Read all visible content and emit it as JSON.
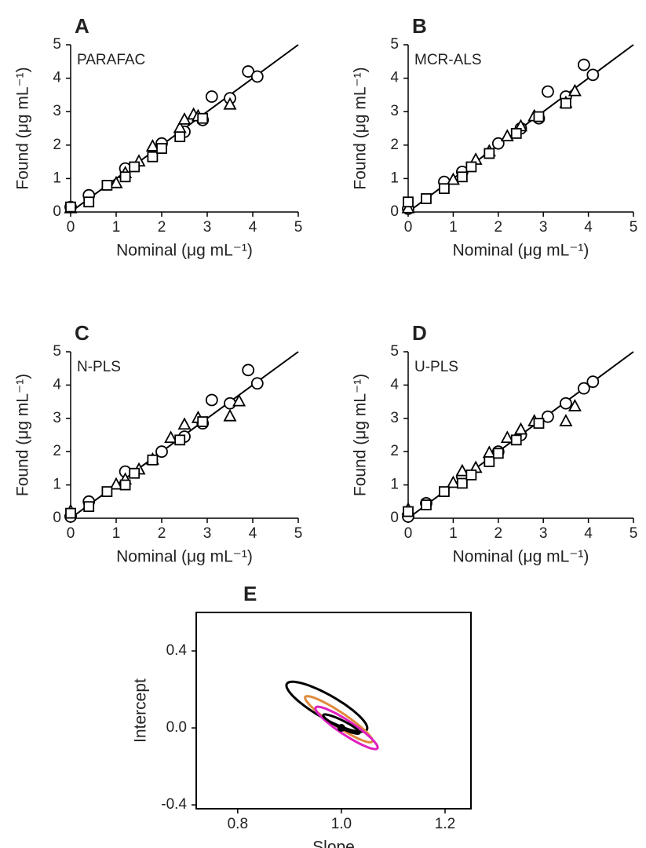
{
  "chart_data": [
    {
      "type": "scatter",
      "panel_label": "A",
      "method": "PARAFAC",
      "x_label": "Nominal (μg mL⁻¹)",
      "y_label": "Found (μg mL⁻¹)",
      "xlim": [
        0,
        5
      ],
      "ylim": [
        0,
        5
      ],
      "xticks": [
        0,
        1,
        2,
        3,
        4,
        5
      ],
      "yticks": [
        0,
        1,
        2,
        3,
        4,
        5
      ],
      "series": [
        {
          "marker": "circle",
          "color": "#000000",
          "x": [
            0,
            0.4,
            1.2,
            2.0,
            2.5,
            2.9,
            3.1,
            3.5,
            3.9,
            4.1
          ],
          "values": [
            0.15,
            0.5,
            1.3,
            2.05,
            2.4,
            2.75,
            3.45,
            3.4,
            4.2,
            4.05
          ]
        },
        {
          "marker": "triangle",
          "color": "#000000",
          "x": [
            0,
            1.0,
            1.2,
            1.5,
            1.8,
            2.4,
            2.5,
            2.7,
            2.8,
            3.5
          ],
          "values": [
            0.1,
            0.85,
            1.15,
            1.5,
            1.95,
            2.5,
            2.75,
            2.9,
            2.85,
            3.2
          ]
        },
        {
          "marker": "square",
          "color": "#000000",
          "x": [
            0,
            0.4,
            0.8,
            1.2,
            1.4,
            1.8,
            2.0,
            2.4,
            2.9
          ],
          "values": [
            0.15,
            0.3,
            0.8,
            1.05,
            1.35,
            1.65,
            1.9,
            2.25,
            2.8
          ]
        }
      ]
    },
    {
      "type": "scatter",
      "panel_label": "B",
      "method": "MCR-ALS",
      "x_label": "Nominal (μg mL⁻¹)",
      "y_label": "Found (μg mL⁻¹)",
      "xlim": [
        0,
        5
      ],
      "ylim": [
        0,
        5
      ],
      "xticks": [
        0,
        1,
        2,
        3,
        4,
        5
      ],
      "yticks": [
        0,
        1,
        2,
        3,
        4,
        5
      ],
      "series": [
        {
          "marker": "circle",
          "color": "#000000",
          "x": [
            0,
            0.8,
            1.2,
            2.0,
            2.5,
            2.9,
            3.1,
            3.5,
            3.9,
            4.1
          ],
          "values": [
            0.1,
            0.9,
            1.2,
            2.05,
            2.5,
            2.8,
            3.6,
            3.45,
            4.4,
            4.1
          ]
        },
        {
          "marker": "triangle",
          "color": "#000000",
          "x": [
            0,
            1.0,
            1.5,
            1.8,
            2.2,
            2.5,
            2.8,
            3.5,
            3.7
          ],
          "values": [
            0.1,
            0.95,
            1.55,
            1.8,
            2.25,
            2.55,
            2.85,
            3.25,
            3.6
          ]
        },
        {
          "marker": "square",
          "color": "#000000",
          "x": [
            0,
            0.4,
            0.8,
            1.2,
            1.4,
            1.8,
            2.4,
            2.9,
            3.5
          ],
          "values": [
            0.3,
            0.4,
            0.7,
            1.05,
            1.35,
            1.75,
            2.35,
            2.85,
            3.25
          ]
        }
      ]
    },
    {
      "type": "scatter",
      "panel_label": "C",
      "method": "N-PLS",
      "x_label": "Nominal (μg mL⁻¹)",
      "y_label": "Found (μg mL⁻¹)",
      "xlim": [
        0,
        5
      ],
      "ylim": [
        0,
        5
      ],
      "xticks": [
        0,
        1,
        2,
        3,
        4,
        5
      ],
      "yticks": [
        0,
        1,
        2,
        3,
        4,
        5
      ],
      "series": [
        {
          "marker": "circle",
          "color": "#000000",
          "x": [
            0,
            0.4,
            1.2,
            2.0,
            2.5,
            2.9,
            3.1,
            3.5,
            3.9,
            4.1
          ],
          "values": [
            0.05,
            0.5,
            1.4,
            2.0,
            2.45,
            2.85,
            3.55,
            3.45,
            4.45,
            4.05
          ]
        },
        {
          "marker": "triangle",
          "color": "#000000",
          "x": [
            0,
            1.0,
            1.2,
            1.5,
            1.8,
            2.2,
            2.5,
            2.8,
            3.5,
            3.7
          ],
          "values": [
            0.2,
            1.0,
            1.15,
            1.45,
            1.75,
            2.4,
            2.8,
            3.0,
            3.05,
            3.5
          ]
        },
        {
          "marker": "square",
          "color": "#000000",
          "x": [
            0,
            0.4,
            0.8,
            1.2,
            1.4,
            1.8,
            2.4,
            2.9
          ],
          "values": [
            0.15,
            0.35,
            0.8,
            1.0,
            1.35,
            1.75,
            2.35,
            2.9
          ]
        }
      ]
    },
    {
      "type": "scatter",
      "panel_label": "D",
      "method": "U-PLS",
      "x_label": "Nominal (μg mL⁻¹)",
      "y_label": "Found (μg mL⁻¹)",
      "xlim": [
        0,
        5
      ],
      "ylim": [
        0,
        5
      ],
      "xticks": [
        0,
        1,
        2,
        3,
        4,
        5
      ],
      "yticks": [
        0,
        1,
        2,
        3,
        4,
        5
      ],
      "series": [
        {
          "marker": "circle",
          "color": "#000000",
          "x": [
            0,
            0.4,
            1.2,
            2.0,
            2.5,
            3.1,
            3.5,
            3.9,
            4.1
          ],
          "values": [
            0.05,
            0.45,
            1.25,
            2.0,
            2.5,
            3.05,
            3.45,
            3.9,
            4.1
          ]
        },
        {
          "marker": "triangle",
          "color": "#000000",
          "x": [
            0,
            1.0,
            1.2,
            1.5,
            1.8,
            2.2,
            2.5,
            2.8,
            3.5,
            3.7
          ],
          "values": [
            0.25,
            1.05,
            1.4,
            1.5,
            1.95,
            2.4,
            2.65,
            2.9,
            2.9,
            3.35
          ]
        },
        {
          "marker": "square",
          "color": "#000000",
          "x": [
            0,
            0.4,
            0.8,
            1.2,
            1.4,
            1.8,
            2.0,
            2.4,
            2.9
          ],
          "values": [
            0.2,
            0.4,
            0.8,
            1.05,
            1.3,
            1.7,
            1.95,
            2.35,
            2.85
          ]
        }
      ]
    },
    {
      "type": "ellipse",
      "panel_label": "E",
      "x_label": "Slope",
      "y_label": "Intercept",
      "xlim": [
        0.72,
        1.25
      ],
      "ylim": [
        -0.42,
        0.6
      ],
      "xticks": [
        0.8,
        {
          "value": 1,
          "label": "1.0"
        },
        1.2
      ],
      "yticks": [
        -0.4,
        {
          "value": 0,
          "label": "0.0"
        },
        0.4
      ],
      "ellipses": [
        {
          "color": "#000000",
          "center_x": 0.972,
          "center_y": 0.11,
          "x_radius": 0.078,
          "y_radius": 0.13,
          "correlation": -0.85
        },
        {
          "color": "#e08a3c",
          "center_x": 0.995,
          "center_y": 0.045,
          "x_radius": 0.065,
          "y_radius": 0.12,
          "correlation": -0.93
        },
        {
          "color": "#e020c0",
          "center_x": 1.01,
          "center_y": 0.0,
          "x_radius": 0.06,
          "y_radius": 0.11,
          "correlation": -0.92
        },
        {
          "color": "#000000",
          "center_x": 1.0,
          "center_y": 0.02,
          "x_radius": 0.035,
          "y_radius": 0.05,
          "correlation": -0.9
        }
      ],
      "points": {
        "color": "#000000",
        "x": [
          1.0
        ],
        "values": [
          0
        ]
      }
    }
  ]
}
